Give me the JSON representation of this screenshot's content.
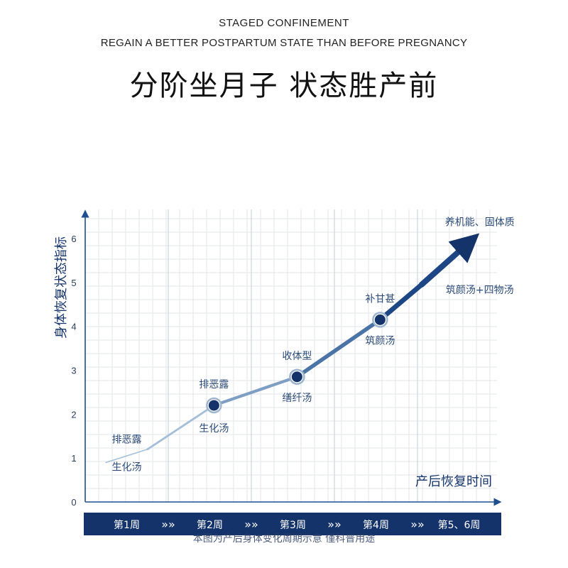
{
  "header": {
    "subtitle_line1": "STAGED CONFINEMENT",
    "subtitle_line2": "REGAIN A BETTER POSTPARTUM STATE THAN BEFORE PREGNANCY",
    "title": "分阶坐月子 状态胜产前"
  },
  "footnote": "本图为产后身体变化周期示意 僅科普用途",
  "colors": {
    "navy": "#14336b",
    "accent_blue": "#1f4f8f",
    "light_line": "#8fb0cf",
    "grid": "#e3e6ea",
    "week_bar": "#14336b"
  },
  "chart_data": {
    "type": "line",
    "ylabel": "身体恢复状态指标",
    "xlabel": "产后恢复时间",
    "ylim": [
      0,
      6.5
    ],
    "y_ticks": [
      0,
      1,
      2,
      3,
      4,
      5,
      6
    ],
    "categories": [
      "第1周",
      "第2周",
      "第3周",
      "第4周",
      "第5、6周"
    ],
    "week_separator": "»",
    "grid": true,
    "series": [
      {
        "x": [
          0.25,
          0.75,
          1.55,
          2.55,
          3.55,
          4.05,
          4.65
        ],
        "values": [
          0.9,
          1.2,
          2.2,
          2.85,
          4.15,
          4.95,
          5.95
        ]
      }
    ],
    "markers": [
      {
        "x": 1.55,
        "value": 2.2
      },
      {
        "x": 2.55,
        "value": 2.85
      },
      {
        "x": 3.55,
        "value": 4.15
      }
    ],
    "annotations": [
      {
        "text": "排恶露",
        "x": 0.5,
        "value": 1.35
      },
      {
        "text": "生化汤",
        "x": 0.5,
        "value": 0.72
      },
      {
        "text": "排恶露",
        "x": 1.55,
        "value": 2.6
      },
      {
        "text": "生化汤",
        "x": 1.55,
        "value": 1.6
      },
      {
        "text": "收体型",
        "x": 2.55,
        "value": 3.25
      },
      {
        "text": "缮纤汤",
        "x": 2.55,
        "value": 2.3
      },
      {
        "text": "补甘甚",
        "x": 3.55,
        "value": 4.55
      },
      {
        "text": "筑颜汤",
        "x": 3.55,
        "value": 3.6
      },
      {
        "text": "养机能、固体质",
        "x": 4.75,
        "value": 6.3
      },
      {
        "text": "筑颜汤+四物汤",
        "x": 4.75,
        "value": 4.75
      }
    ]
  }
}
